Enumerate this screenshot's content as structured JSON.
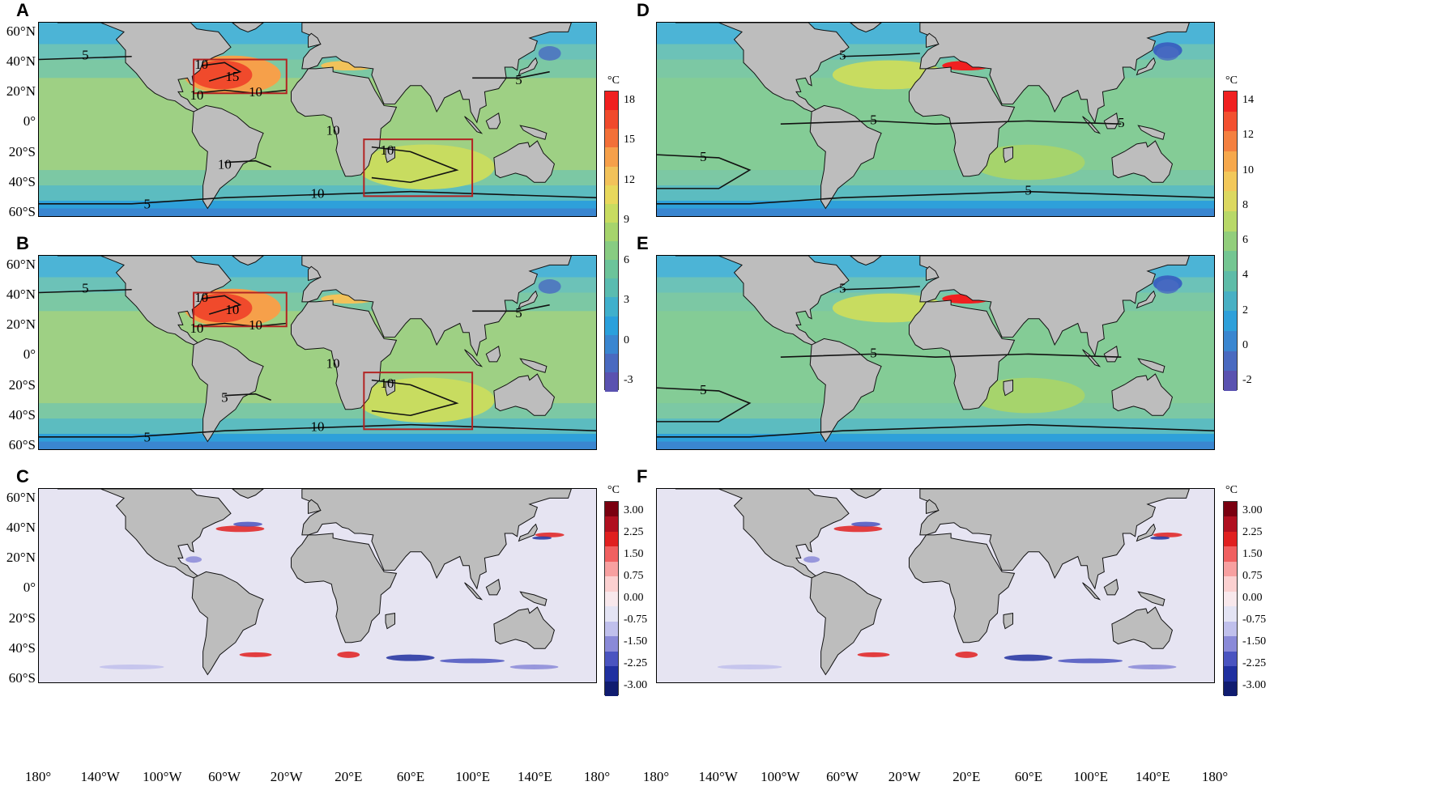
{
  "panels": [
    {
      "letter": "A"
    },
    {
      "letter": "B"
    },
    {
      "letter": "C"
    },
    {
      "letter": "D"
    },
    {
      "letter": "E"
    },
    {
      "letter": "F"
    }
  ],
  "lat_labels": [
    "60°N",
    "40°N",
    "20°N",
    "0°",
    "20°S",
    "40°S",
    "60°S"
  ],
  "lon_labels": [
    "180°",
    "140°W",
    "100°W",
    "60°W",
    "20°W",
    "20°E",
    "60°E",
    "100°E",
    "140°E",
    "180°"
  ],
  "colorbars": {
    "abc_top": {
      "unit": "°C",
      "ticks": [
        "18",
        "15",
        "12",
        "9",
        "6",
        "3",
        "0",
        "-3"
      ],
      "colors": [
        "#f02020",
        "#f04a2c",
        "#f37038",
        "#f6a04a",
        "#f2c25a",
        "#e8d85c",
        "#c8dc60",
        "#a6d46c",
        "#88cc82",
        "#6cc49a",
        "#5abcb0",
        "#40b0cc",
        "#2aa0dc",
        "#3a86d0",
        "#4a6ac0",
        "#5a52b0"
      ]
    },
    "diff": {
      "unit": "°C",
      "ticks": [
        "3.00",
        "2.25",
        "1.50",
        "0.75",
        "0.00",
        "-0.75",
        "-1.50",
        "-2.25",
        "-3.00"
      ],
      "colors": [
        "#7a0010",
        "#b01020",
        "#e02020",
        "#f06060",
        "#f7a0a0",
        "#fbd0d0",
        "#f8e8ec",
        "#e4e4f4",
        "#c0c0ec",
        "#8a8ad8",
        "#4a54c0",
        "#2030a0",
        "#101c70"
      ]
    },
    "de_top": {
      "unit": "°C",
      "ticks": [
        "14",
        "12",
        "10",
        "8",
        "6",
        "4",
        "2",
        "0",
        "-2"
      ],
      "colors": [
        "#f02020",
        "#f25030",
        "#f48040",
        "#f6a84c",
        "#f2c85a",
        "#dcd860",
        "#b8d868",
        "#92ce7c",
        "#74c692",
        "#5ebca8",
        "#48b0c4",
        "#2ea0da",
        "#3a86d0",
        "#4a6ac0",
        "#5a52b0"
      ]
    }
  },
  "contour_labels": {
    "A": [
      "5",
      "10",
      "15",
      "10",
      "10",
      "10",
      "10",
      "10",
      "5",
      "5",
      "10"
    ],
    "B": [
      "5",
      "10",
      "10",
      "10",
      "10",
      "10",
      "10",
      "5",
      "5",
      "5",
      "10"
    ],
    "D": [
      "5",
      "5",
      "5",
      "5",
      "5"
    ],
    "E": [
      "5",
      "5",
      "5"
    ]
  }
}
